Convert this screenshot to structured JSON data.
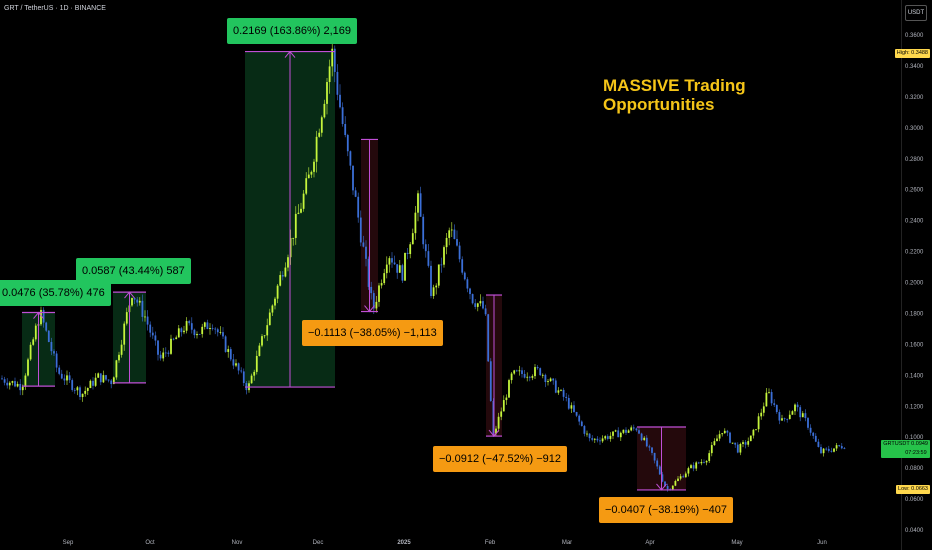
{
  "header": {
    "symbol_title": "GRT / TetherUS · 1D · BINANCE",
    "currency": "USDT"
  },
  "headline": {
    "line1": "MASSIVE Trading",
    "line2": "Opportunities"
  },
  "tags": {
    "high_label": "High",
    "high_value": "0.3488",
    "low_label": "Low",
    "low_value": "0.0663",
    "current_symbol": "GRTUSDT",
    "current_value": "0.0949",
    "countdown": "07:23:59"
  },
  "colors": {
    "up": "#22c55e",
    "down": "#f59a12",
    "bull_candle": "#c5f53c",
    "bear_candle": "#3b6fd8",
    "measure_line": "#c04fd6"
  },
  "measurements": [
    {
      "label": "0.0476 (35.78%) 476",
      "direction": "up",
      "from": 0.133,
      "to": 0.1806
    },
    {
      "label": "0.0587 (43.44%) 587",
      "direction": "up",
      "from": 0.1351,
      "to": 0.1938
    },
    {
      "label": "0.2169 (163.86%) 2,169",
      "direction": "up",
      "from": 0.1324,
      "to": 0.3493
    },
    {
      "label": "−0.1113 (−38.05%) −1,113",
      "direction": "down",
      "from": 0.2925,
      "to": 0.1812
    },
    {
      "label": "−0.0912 (−47.52%) −912",
      "direction": "down",
      "from": 0.1919,
      "to": 0.1007
    },
    {
      "label": "−0.0407 (−38.19%) −407",
      "direction": "down",
      "from": 0.1066,
      "to": 0.0659
    }
  ],
  "chart_data": {
    "type": "line",
    "title": "",
    "xlabel": "",
    "ylabel": "",
    "ylim": [
      0.04,
      0.37
    ],
    "x_ticks": [
      "Sep",
      "Oct",
      "Nov",
      "Dec",
      "2025",
      "Feb",
      "Mar",
      "Apr",
      "May",
      "Jun"
    ],
    "y_ticks": [
      "0.3600",
      "0.3400",
      "0.3200",
      "0.3000",
      "0.2800",
      "0.2600",
      "0.2400",
      "0.2200",
      "0.2000",
      "0.1800",
      "0.1600",
      "0.1400",
      "0.1200",
      "0.1000",
      "0.0800",
      "0.0600",
      "0.0400"
    ],
    "series": [
      {
        "values": [
          [
            0.138,
            "Aug 10"
          ],
          [
            0.133,
            "Aug 20"
          ],
          [
            0.181,
            "Aug 27"
          ],
          [
            0.142,
            "Sep 01"
          ],
          [
            0.128,
            "Sep 08"
          ],
          [
            0.139,
            "Sep 14"
          ],
          [
            0.136,
            "Sep 20"
          ],
          [
            0.194,
            "Sep 27"
          ],
          [
            0.178,
            "Oct 01"
          ],
          [
            0.15,
            "Oct 07"
          ],
          [
            0.172,
            "Oct 14"
          ],
          [
            0.168,
            "Oct 20"
          ],
          [
            0.175,
            "Oct 25"
          ],
          [
            0.153,
            "Nov 01"
          ],
          [
            0.131,
            "Nov 04"
          ],
          [
            0.18,
            "Nov 12"
          ],
          [
            0.23,
            "Nov 20"
          ],
          [
            0.27,
            "Nov 26"
          ],
          [
            0.349,
            "Dec 03"
          ],
          [
            0.292,
            "Dec 06"
          ],
          [
            0.255,
            "Dec 10"
          ],
          [
            0.182,
            "Dec 20"
          ],
          [
            0.22,
            "Dec 25"
          ],
          [
            0.205,
            "Dec 31"
          ],
          [
            0.252,
            "Jan 06"
          ],
          [
            0.19,
            "Jan 12"
          ],
          [
            0.235,
            "Jan 18"
          ],
          [
            0.19,
            "Jan 26"
          ],
          [
            0.182,
            "Jan 30"
          ],
          [
            0.1,
            "Feb 04"
          ],
          [
            0.14,
            "Feb 10"
          ],
          [
            0.143,
            "Feb 20"
          ],
          [
            0.125,
            "Mar 01"
          ],
          [
            0.098,
            "Mar 07"
          ],
          [
            0.1,
            "Mar 14"
          ],
          [
            0.106,
            "Mar 27"
          ],
          [
            0.088,
            "Apr 03"
          ],
          [
            0.066,
            "Apr 08"
          ],
          [
            0.08,
            "Apr 15"
          ],
          [
            0.086,
            "Apr 22"
          ],
          [
            0.105,
            "Apr 29"
          ],
          [
            0.092,
            "May 06"
          ],
          [
            0.1,
            "May 10"
          ],
          [
            0.129,
            "May 14"
          ],
          [
            0.11,
            "May 20"
          ],
          [
            0.12,
            "May 24"
          ],
          [
            0.108,
            "May 29"
          ],
          [
            0.09,
            "Jun 04"
          ],
          [
            0.095,
            "Jun 08"
          ]
        ]
      }
    ]
  }
}
